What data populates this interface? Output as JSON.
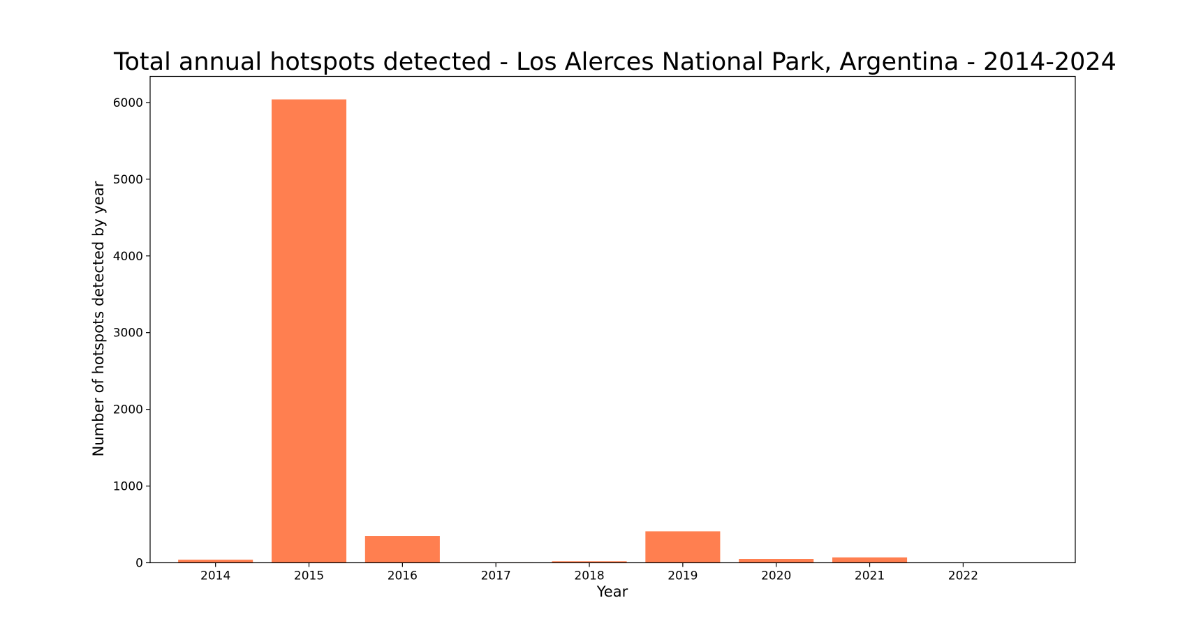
{
  "chart_data": {
    "type": "bar",
    "title": "Total annual hotspots detected - Los Alerces National Park, Argentina - 2014-2024",
    "xlabel": "Year",
    "ylabel": "Number of hotspots detected by year",
    "categories": [
      "2014",
      "2015",
      "2016",
      "2017",
      "2018",
      "2019",
      "2020",
      "2021",
      "2022"
    ],
    "values": [
      40,
      6040,
      350,
      5,
      20,
      410,
      50,
      70,
      0
    ],
    "yticks": [
      "0",
      "1000",
      "2000",
      "3000",
      "4000",
      "5000",
      "6000"
    ],
    "ylim": [
      0,
      6340
    ],
    "grid": false,
    "bar_color": "#ff7f50"
  }
}
